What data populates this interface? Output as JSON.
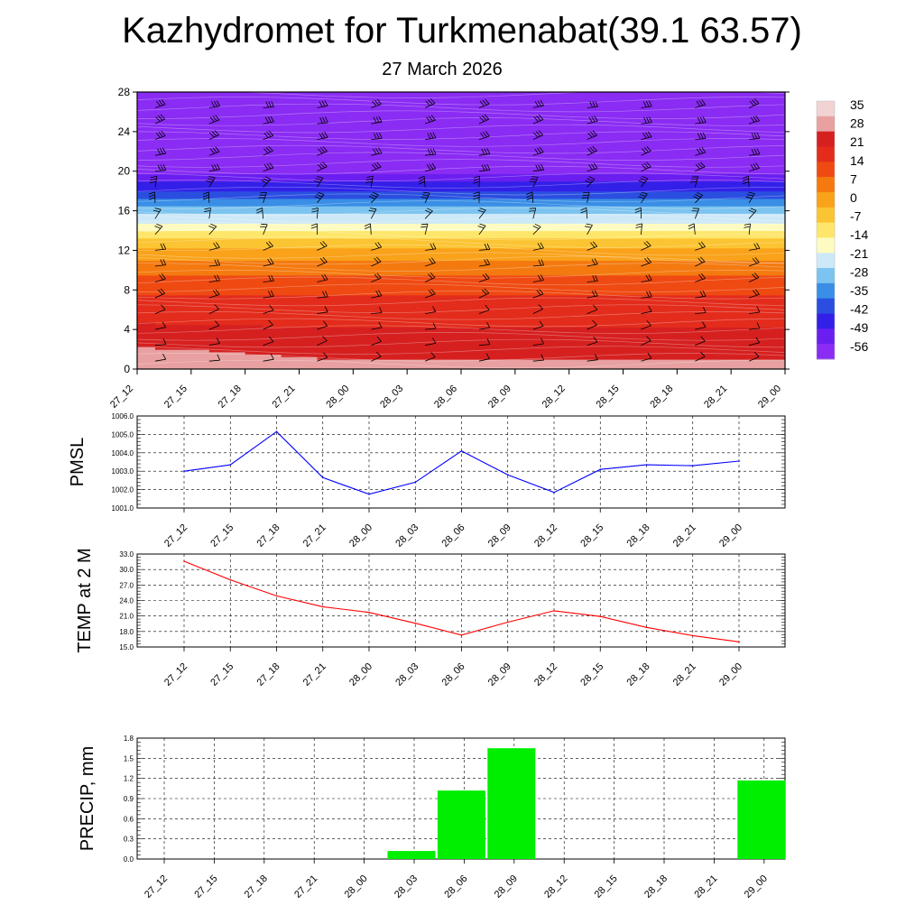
{
  "title": "Kazhydromet for Turkmenabat(39.1 63.57)",
  "subtitle": "27 March 2026",
  "time_labels": [
    "27_12",
    "27_15",
    "27_18",
    "27_21",
    "28_00",
    "28_03",
    "28_06",
    "28_09",
    "28_12",
    "28_15",
    "28_18",
    "28_21",
    "29_00"
  ],
  "colors": {
    "pmsl_line": "#0000ff",
    "temp_line": "#ff0000",
    "precip_bar": "#00ee00",
    "grid": "#000000",
    "barbs": "#000000"
  },
  "chart_data": [
    {
      "type": "heatmap",
      "description_free": true,
      "x": [
        "27_12",
        "27_15",
        "27_18",
        "27_21",
        "28_00",
        "28_03",
        "28_06",
        "28_09",
        "28_12",
        "28_15",
        "28_18",
        "28_21",
        "29_00"
      ],
      "y_ticks": [
        0,
        4,
        8,
        12,
        16,
        20,
        24,
        28
      ],
      "ylim": [
        0,
        28
      ],
      "colorbar_labels": [
        "35",
        "28",
        "21",
        "14",
        "7",
        "0",
        "-7",
        "-14",
        "-21",
        "-28",
        "-35",
        "-42",
        "-49",
        "-56"
      ],
      "colorbar_colors": [
        "#f2d3d3",
        "#e8a0a0",
        "#d62020",
        "#e32c1c",
        "#ef4a12",
        "#f47a10",
        "#f9a21a",
        "#fbc432",
        "#fde66a",
        "#fdfbc0",
        "#cde9f8",
        "#7cc3ef",
        "#3a8ee6",
        "#2a4fe0",
        "#3320e8",
        "#6a1ff0",
        "#8a2cf3"
      ],
      "temperature_profile": {
        "heights": [
          0,
          2,
          4,
          6,
          8,
          10,
          12,
          13,
          14,
          15,
          16,
          17,
          18,
          19,
          20,
          22,
          24,
          26,
          28
        ],
        "temps": [
          28,
          25,
          21,
          18,
          14,
          7,
          0,
          -7,
          -14,
          -21,
          -28,
          -35,
          -42,
          -49,
          -56,
          -56,
          -56,
          -58,
          -60
        ]
      },
      "wind_barbs": "per-level wind barbs at each time step"
    },
    {
      "type": "line",
      "ylabel": "PMSL",
      "categories": [
        "27_12",
        "27_15",
        "27_18",
        "27_21",
        "28_00",
        "28_03",
        "28_06",
        "28_09",
        "28_12",
        "28_15",
        "28_18",
        "28_21",
        "29_00"
      ],
      "values": [
        1003.0,
        1003.35,
        1005.15,
        1002.65,
        1001.75,
        1002.4,
        1004.1,
        1002.8,
        1001.85,
        1003.1,
        1003.35,
        1003.3,
        1003.55
      ],
      "ylim": [
        1001.0,
        1006.0
      ],
      "yticks": [
        "1001.0",
        "1002.0",
        "1003.0",
        "1004.0",
        "1005.0",
        "1006.0"
      ],
      "grid": true
    },
    {
      "type": "line",
      "ylabel": "TEMP at 2 M",
      "categories": [
        "27_12",
        "27_15",
        "27_18",
        "27_21",
        "28_00",
        "28_03",
        "28_06",
        "28_09",
        "28_12",
        "28_15",
        "28_18",
        "28_21",
        "29_00"
      ],
      "values": [
        31.6,
        28.0,
        24.9,
        22.8,
        21.7,
        19.6,
        17.3,
        19.8,
        22.0,
        20.9,
        18.8,
        17.2,
        16.0
      ],
      "ylim": [
        15.0,
        33.0
      ],
      "yticks": [
        "15.0",
        "18.0",
        "21.0",
        "24.0",
        "27.0",
        "30.0",
        "33.0"
      ],
      "grid": true
    },
    {
      "type": "bar",
      "ylabel": "PRECIP, mm",
      "categories": [
        "27_12",
        "27_15",
        "27_18",
        "27_21",
        "28_00",
        "28_03",
        "28_06",
        "28_09",
        "28_12",
        "28_15",
        "28_18",
        "28_21",
        "29_00"
      ],
      "values": [
        0,
        0,
        0,
        0,
        0,
        0.12,
        1.02,
        1.65,
        0,
        0,
        0,
        0,
        1.17
      ],
      "ylim": [
        0.0,
        1.8
      ],
      "yticks": [
        "0.0",
        "0.3",
        "0.6",
        "0.9",
        "1.2",
        "1.5",
        "1.8"
      ],
      "grid": true
    }
  ]
}
